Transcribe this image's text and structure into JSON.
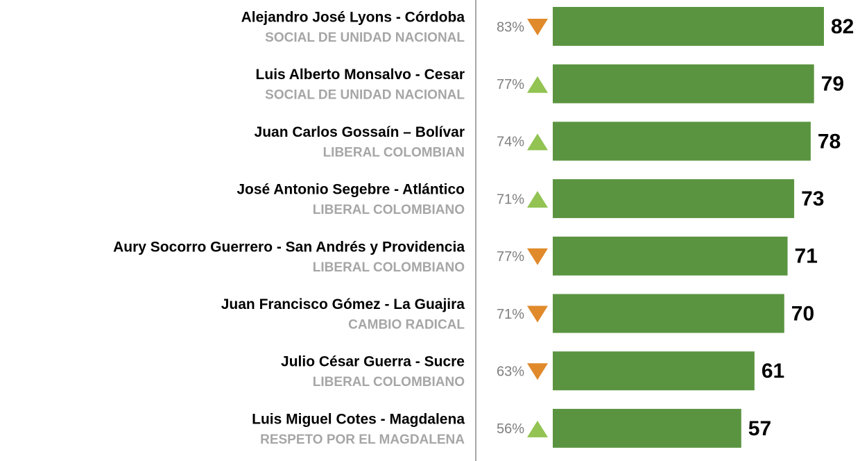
{
  "chart_data": {
    "type": "bar",
    "orientation": "horizontal",
    "categories": [
      "Alejandro José Lyons - Córdoba",
      "Luis Alberto Monsalvo - Cesar",
      "Juan Carlos Gossaín – Bolívar",
      "José Antonio Segebre - Atlántico",
      "Aury Socorro Guerrero - San Andrés y Providencia",
      "Juan Francisco Gómez - La Guajira",
      "Julio César Guerra - Sucre",
      "Luis Miguel Cotes - Magdalena"
    ],
    "parties": [
      "SOCIAL DE UNIDAD NACIONAL",
      "SOCIAL DE UNIDAD NACIONAL",
      "LIBERAL COLOMBIAN",
      "LIBERAL COLOMBIANO",
      "LIBERAL COLOMBIANO",
      "CAMBIO RADICAL",
      "LIBERAL COLOMBIANO",
      "RESPETO POR EL MAGDALENA"
    ],
    "values": [
      82,
      79,
      78,
      73,
      71,
      70,
      61,
      57
    ],
    "color": "#5a9440",
    "previous": {
      "values": [
        83,
        77,
        74,
        71,
        77,
        71,
        63,
        56
      ],
      "value_labels": [
        "83%",
        "77%",
        "74%",
        "71%",
        "77%",
        "71%",
        "63%",
        "56%"
      ]
    },
    "trend": [
      "down",
      "up",
      "up",
      "up",
      "down",
      "down",
      "down",
      "up"
    ],
    "trend_colors": {
      "up": "#92c353",
      "down": "#e08a2c"
    }
  }
}
